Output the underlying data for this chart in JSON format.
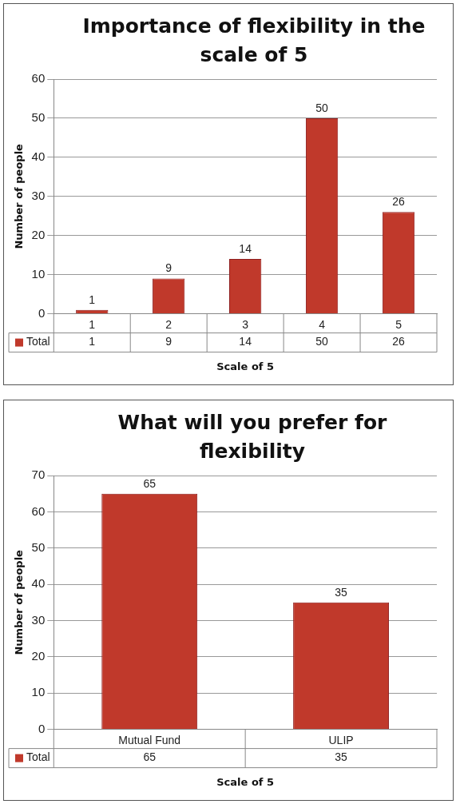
{
  "chart_data": [
    {
      "type": "bar",
      "title": "Importance of flexibility in the scale of 5",
      "xlabel": "Scale of 5",
      "ylabel": "Number of people",
      "categories": [
        "1",
        "2",
        "3",
        "4",
        "5"
      ],
      "series": [
        {
          "name": "Total",
          "color": "#c0392b",
          "values": [
            1,
            9,
            14,
            50,
            26
          ]
        }
      ],
      "annotations": [
        "1",
        "9",
        "14",
        "50",
        "26"
      ],
      "ylim": [
        0,
        60
      ],
      "yticks": [
        0,
        10,
        20,
        30,
        40,
        50,
        60
      ],
      "grid": "y",
      "legend": "bottom left",
      "data_labels": true
    },
    {
      "type": "bar",
      "title": "What will you prefer for flexibility",
      "xlabel": "Scale of 5",
      "ylabel": "Number of people",
      "categories": [
        "Mutual Fund",
        "ULIP"
      ],
      "series": [
        {
          "name": "Total",
          "color": "#c0392b",
          "values": [
            65,
            35
          ]
        }
      ],
      "annotations": [
        "65",
        "35"
      ],
      "ylim": [
        0,
        70
      ],
      "yticks": [
        0,
        10,
        20,
        30,
        40,
        50,
        60,
        70
      ],
      "grid": "y",
      "legend": "bottom left",
      "data_labels": true
    }
  ]
}
